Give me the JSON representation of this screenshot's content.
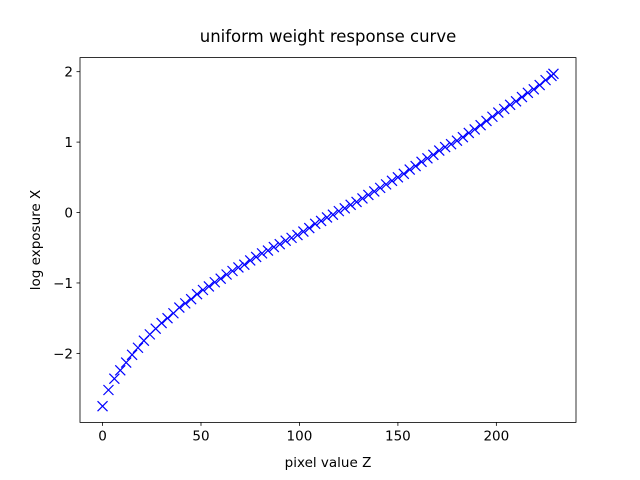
{
  "chart_data": {
    "type": "scatter",
    "title": "uniform weight response curve",
    "x_label": "pixel value Z",
    "y_label": "log exposure X",
    "marker": "x",
    "color": "#0000ff",
    "x": [
      0,
      3,
      6,
      9,
      12,
      15,
      18,
      21,
      24,
      27,
      30,
      33,
      36,
      39,
      42,
      45,
      48,
      51,
      54,
      57,
      60,
      63,
      66,
      69,
      72,
      75,
      78,
      81,
      84,
      87,
      90,
      93,
      96,
      99,
      102,
      105,
      108,
      111,
      114,
      117,
      120,
      123,
      126,
      129,
      132,
      135,
      138,
      141,
      144,
      147,
      150,
      153,
      156,
      159,
      162,
      165,
      168,
      171,
      174,
      177,
      180,
      183,
      186,
      189,
      192,
      195,
      198,
      201,
      204,
      207,
      210,
      213,
      216,
      219,
      222,
      225,
      228,
      229
    ],
    "values": [
      -2.75,
      -2.52,
      -2.36,
      -2.24,
      -2.13,
      -2.02,
      -1.92,
      -1.82,
      -1.73,
      -1.65,
      -1.57,
      -1.5,
      -1.43,
      -1.35,
      -1.29,
      -1.23,
      -1.16,
      -1.1,
      -1.05,
      -0.99,
      -0.94,
      -0.88,
      -0.83,
      -0.78,
      -0.74,
      -0.68,
      -0.63,
      -0.58,
      -0.54,
      -0.49,
      -0.45,
      -0.4,
      -0.36,
      -0.32,
      -0.27,
      -0.22,
      -0.16,
      -0.12,
      -0.07,
      -0.03,
      0.02,
      0.06,
      0.11,
      0.15,
      0.2,
      0.25,
      0.3,
      0.35,
      0.4,
      0.45,
      0.5,
      0.55,
      0.61,
      0.66,
      0.72,
      0.77,
      0.82,
      0.88,
      0.93,
      0.97,
      1.02,
      1.07,
      1.13,
      1.18,
      1.24,
      1.3,
      1.36,
      1.42,
      1.47,
      1.53,
      1.58,
      1.64,
      1.7,
      1.75,
      1.81,
      1.88,
      1.94,
      1.97
    ],
    "xlim": [
      -11.45,
      240.45
    ],
    "ylim": [
      -2.98,
      2.2
    ],
    "xticks": [
      0,
      50,
      100,
      150,
      200
    ],
    "yticks": [
      {
        "value": -2,
        "label": "−2"
      },
      {
        "value": -1,
        "label": "−1"
      },
      0,
      1,
      2
    ]
  }
}
